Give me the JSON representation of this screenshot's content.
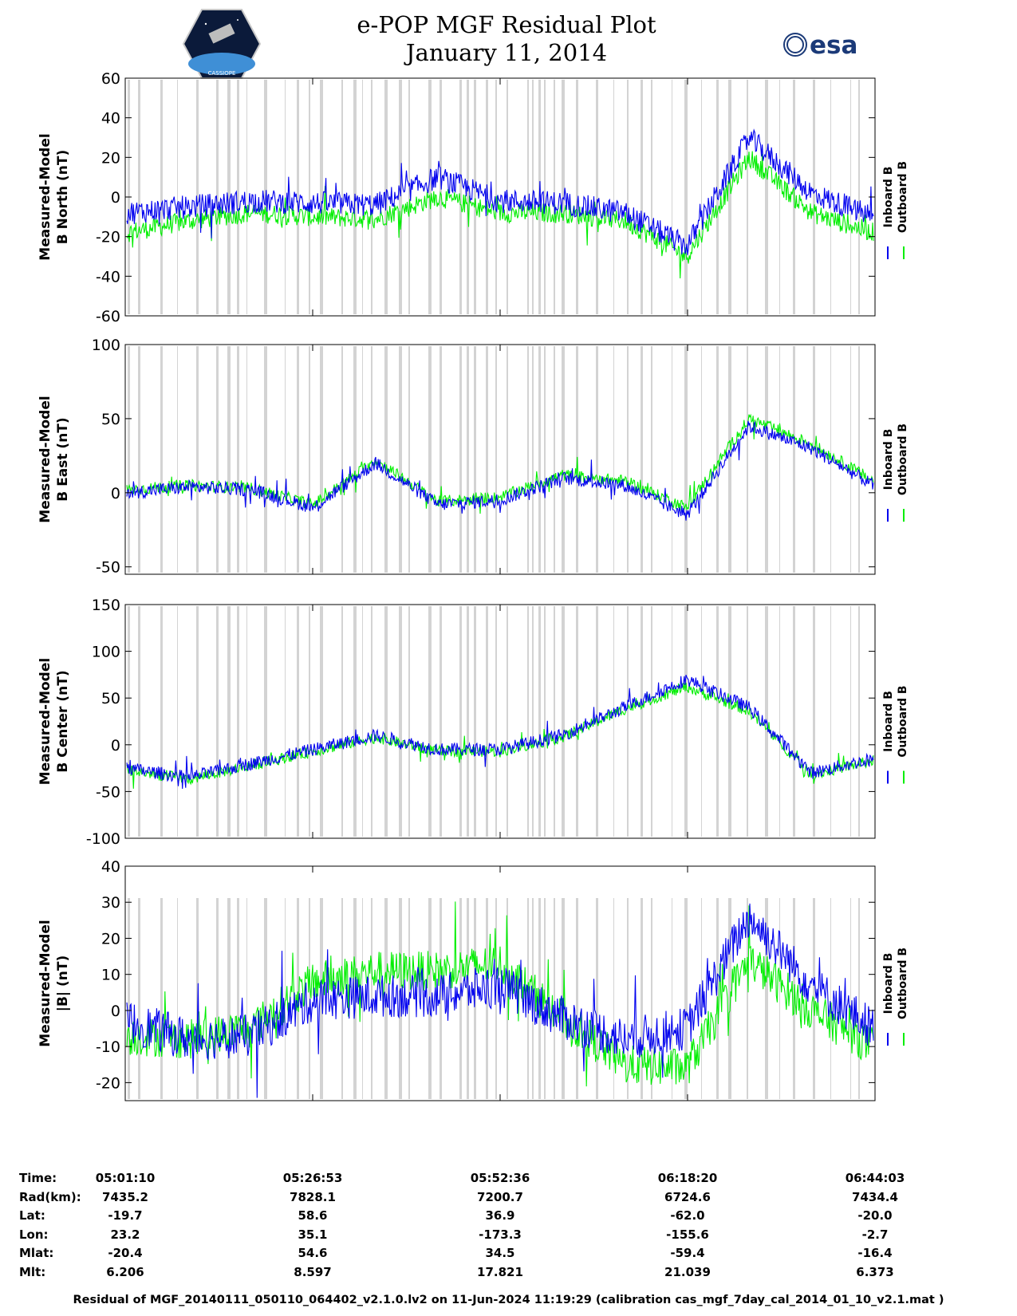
{
  "header": {
    "title_line1": "e-POP MGF Residual Plot",
    "title_line2": "January 11, 2014",
    "left_logo_text": "CASSIOPE",
    "right_logo_text": "esa"
  },
  "legend": {
    "inboard": "Inboard B",
    "outboard": "Outboard B"
  },
  "colors": {
    "inboard": "#0000ee",
    "outboard": "#00ee00",
    "gap_band": "#d3d3d3"
  },
  "chart_data": [
    {
      "type": "line",
      "ylabel_line1": "Measured-Model",
      "ylabel_line2": "B North (nT)",
      "ylim": [
        -60,
        60
      ],
      "yticks": [
        -60,
        -40,
        -20,
        0,
        20,
        40,
        60
      ],
      "x": [
        "05:01:10",
        "05:09:44",
        "05:18:19",
        "05:26:53",
        "05:35:27",
        "05:44:01",
        "05:52:36",
        "06:01:10",
        "06:09:45",
        "06:18:20",
        "06:26:54",
        "06:35:28",
        "06:44:03"
      ],
      "series": [
        {
          "name": "Inboard B",
          "values": [
            -8,
            -5,
            -2,
            -3,
            -4,
            10,
            -2,
            -3,
            -8,
            -25,
            30,
            2,
            -10
          ],
          "spread": 12
        },
        {
          "name": "Outboard B",
          "values": [
            -18,
            -12,
            -8,
            -10,
            -11,
            0,
            -8,
            -8,
            -12,
            -30,
            20,
            -8,
            -18
          ],
          "spread": 10
        }
      ]
    },
    {
      "type": "line",
      "ylabel_line1": "Measured-Model",
      "ylabel_line2": "B East (nT)",
      "ylim": [
        -55,
        100
      ],
      "yticks": [
        -50,
        0,
        50,
        100
      ],
      "x": [
        "05:01:10",
        "05:09:44",
        "05:18:19",
        "05:26:53",
        "05:35:27",
        "05:44:01",
        "05:52:36",
        "06:01:10",
        "06:09:45",
        "06:18:20",
        "06:26:54",
        "06:35:28",
        "06:44:03"
      ],
      "series": [
        {
          "name": "Inboard B",
          "values": [
            0,
            4,
            2,
            -10,
            20,
            -8,
            -5,
            10,
            5,
            -15,
            45,
            30,
            5
          ],
          "spread": 9
        },
        {
          "name": "Outboard B",
          "values": [
            2,
            5,
            3,
            -8,
            22,
            -6,
            -3,
            12,
            8,
            -10,
            50,
            33,
            8
          ],
          "spread": 8
        }
      ]
    },
    {
      "type": "line",
      "ylabel_line1": "Measured-Model",
      "ylabel_line2": "B Center (nT)",
      "ylim": [
        -100,
        150
      ],
      "yticks": [
        -100,
        -50,
        0,
        50,
        100,
        150
      ],
      "x": [
        "05:01:10",
        "05:09:44",
        "05:18:19",
        "05:26:53",
        "05:35:27",
        "05:44:01",
        "05:52:36",
        "06:01:10",
        "06:09:45",
        "06:18:20",
        "06:26:54",
        "06:35:28",
        "06:44:03"
      ],
      "series": [
        {
          "name": "Inboard B",
          "values": [
            -25,
            -35,
            -20,
            -5,
            10,
            -5,
            -5,
            10,
            40,
            70,
            40,
            -30,
            -15
          ],
          "spread": 14
        },
        {
          "name": "Outboard B",
          "values": [
            -27,
            -37,
            -22,
            -7,
            8,
            -7,
            -7,
            8,
            38,
            62,
            36,
            -32,
            -17
          ],
          "spread": 12
        }
      ]
    },
    {
      "type": "area",
      "ylabel_line1": "Measured-Model",
      "ylabel_line2": "|B| (nT)",
      "ylim": [
        -25,
        40
      ],
      "yticks": [
        -20,
        -10,
        0,
        10,
        20,
        30,
        40
      ],
      "x": [
        "05:01:10",
        "05:09:44",
        "05:18:19",
        "05:26:53",
        "05:35:27",
        "05:44:01",
        "05:52:36",
        "06:01:10",
        "06:09:45",
        "06:18:20",
        "06:26:54",
        "06:35:28",
        "06:44:03"
      ],
      "series": [
        {
          "name": "Inboard B",
          "values": [
            -3,
            -8,
            -7,
            3,
            4,
            4,
            7,
            -2,
            -8,
            -5,
            26,
            7,
            -5
          ],
          "spread": 12
        },
        {
          "name": "Outboard B",
          "values": [
            -7,
            -8,
            -5,
            8,
            11,
            11,
            13,
            -2,
            -15,
            -16,
            14,
            0,
            -10
          ],
          "spread": 11
        }
      ]
    }
  ],
  "info_table": {
    "row_labels": [
      "Time:",
      "Rad(km):",
      "Lat:",
      "Lon:",
      "Mlat:",
      "Mlt:"
    ],
    "columns": [
      {
        "Time": "05:01:10",
        "Rad": "7435.2",
        "Lat": "-19.7",
        "Lon": "23.2",
        "Mlat": "-20.4",
        "Mlt": "6.206"
      },
      {
        "Time": "05:26:53",
        "Rad": "7828.1",
        "Lat": "58.6",
        "Lon": "35.1",
        "Mlat": "54.6",
        "Mlt": "8.597"
      },
      {
        "Time": "05:52:36",
        "Rad": "7200.7",
        "Lat": "36.9",
        "Lon": "-173.3",
        "Mlat": "34.5",
        "Mlt": "17.821"
      },
      {
        "Time": "06:18:20",
        "Rad": "6724.6",
        "Lat": "-62.0",
        "Lon": "-155.6",
        "Mlat": "-59.4",
        "Mlt": "21.039"
      },
      {
        "Time": "06:44:03",
        "Rad": "7434.4",
        "Lat": "-20.0",
        "Lon": "-2.7",
        "Mlat": "-16.4",
        "Mlt": "6.373"
      }
    ]
  },
  "footer": "Residual of MGF_20140111_050110_064402_v2.1.0.lv2 on 11-Jun-2024 11:19:29 (calibration cas_mgf_7day_cal_2014_01_10_v2.1.mat )"
}
